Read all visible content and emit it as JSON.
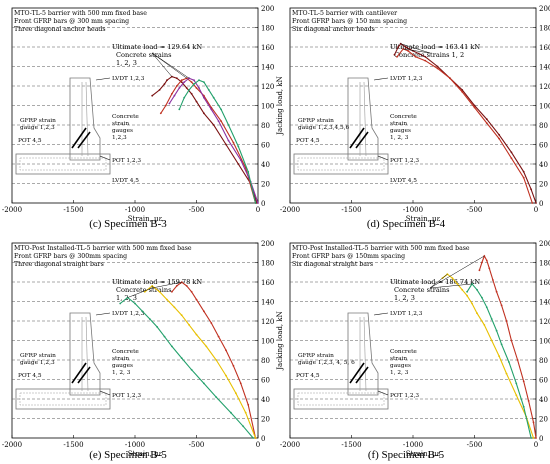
{
  "chart_data": [
    {
      "type": "line",
      "panel": "c",
      "caption": "(c) Specimen B-3",
      "notes": [
        "MTO-TL-5 barrier with 500 mm fixed base",
        "Front GFRP bars @ 300 mm spacing",
        "Three diagonal anchor heads"
      ],
      "annotation": "Ultimate load = 129.64 kN",
      "annotation2": [
        "Concrete strains",
        "1, 2, 3"
      ],
      "xlabel": "Strain, με",
      "ylabel": "Jacking load, kN",
      "xlim": [
        -2000,
        0
      ],
      "ylim": [
        0,
        200
      ],
      "xticks": [
        "-2000",
        "-1500",
        "-1000",
        "-500",
        "0"
      ],
      "yticks": [
        "0",
        "20",
        "40",
        "60",
        "80",
        "100",
        "120",
        "140",
        "160",
        "180",
        "200"
      ],
      "inset_labels": [
        "LVDT 1,2,3",
        "GFRP strain",
        "gauge 1,2,3",
        "Concrete",
        "strain",
        "gauges",
        "1,2,3",
        "POT 4,5",
        "POT 1,2,3",
        "LVDT 4,5"
      ],
      "series": [
        {
          "color": "#7a1010",
          "x": [
            -860,
            -800,
            -760,
            -740,
            -700,
            -660,
            -620,
            -580,
            -540,
            -500,
            -440,
            -360,
            -260,
            -160,
            -60,
            -10
          ],
          "y": [
            110,
            116,
            122,
            126,
            129.6,
            128,
            124,
            118,
            112,
            104,
            92,
            80,
            60,
            40,
            20,
            0
          ]
        },
        {
          "color": "#c03020",
          "x": [
            -790,
            -750,
            -700,
            -660,
            -620,
            -580,
            -540,
            -500,
            -440,
            -380,
            -300,
            -200,
            -100,
            -20
          ],
          "y": [
            92,
            100,
            112,
            120,
            126,
            128,
            124,
            118,
            110,
            98,
            84,
            62,
            36,
            0
          ]
        },
        {
          "color": "#8b2fa0",
          "x": [
            -720,
            -680,
            -640,
            -600,
            -560,
            -520,
            -480,
            -440,
            -380,
            -320,
            -240,
            -140,
            -60,
            0
          ],
          "y": [
            102,
            110,
            118,
            124,
            128,
            126,
            118,
            108,
            96,
            84,
            64,
            44,
            22,
            0
          ]
        },
        {
          "color": "#22a06b",
          "x": [
            -640,
            -600,
            -560,
            -520,
            -480,
            -440,
            -400,
            -360,
            -300,
            -240,
            -160,
            -80,
            -20
          ],
          "y": [
            96,
            108,
            116,
            122,
            126,
            124,
            116,
            108,
            96,
            80,
            58,
            32,
            0
          ]
        }
      ]
    },
    {
      "type": "line",
      "panel": "d",
      "caption": "(d) Specimen B-4",
      "notes": [
        "MTO-TL-5 barrier with cantilever",
        "Front GFRP bars @ 150 mm spacing",
        "Six diagonal anchor heads"
      ],
      "annotation": "Ultimate load = 163.41 kN",
      "annotation2": [
        "Concrete strains 1, 2"
      ],
      "xlabel": "Strain, με",
      "ylabel": "Jacking load, kN",
      "xlim": [
        -2000,
        0
      ],
      "ylim": [
        0,
        200
      ],
      "xticks": [
        "-2000",
        "-1500",
        "-1000",
        "-500",
        "0"
      ],
      "yticks": [
        "0",
        "20",
        "40",
        "60",
        "80",
        "100",
        "120",
        "140",
        "160",
        "180",
        "200"
      ],
      "inset_labels": [
        "LVDT 1,2,3",
        "GFRP strain",
        "gauge 1,2,3,4,5,6",
        "Concrete",
        "strain",
        "gauges",
        "1, 2, 3",
        "POT 4,5",
        "POT 1,2,3",
        "LVDT 4,5"
      ],
      "series": [
        {
          "color": "#7a1010",
          "x": [
            -1150,
            -1120,
            -1100,
            -1060,
            -1000,
            -900,
            -800,
            -700,
            -600,
            -500,
            -400,
            -300,
            -200,
            -100,
            -40,
            0
          ],
          "y": [
            152,
            160,
            163.4,
            160,
            156,
            150,
            140,
            128,
            116,
            100,
            86,
            70,
            52,
            32,
            14,
            0
          ]
        },
        {
          "color": "#c03020",
          "x": [
            -1130,
            -1080,
            -1040,
            -980,
            -900,
            -800,
            -700,
            -600,
            -500,
            -400,
            -300,
            -200,
            -100,
            -30
          ],
          "y": [
            150,
            158,
            156,
            150,
            146,
            138,
            128,
            114,
            98,
            82,
            66,
            46,
            26,
            0
          ]
        }
      ]
    },
    {
      "type": "line",
      "panel": "e",
      "caption": "(e) Specimen B-5",
      "notes": [
        "MTO-Post Installed-TL-5 barrier with 500 mm fixed base",
        "Front GFRP bars @ 300mm spacing",
        "Three diagonal straight bars"
      ],
      "annotation": "Ultimate load = 159.78 kN",
      "annotation2": [
        "Concrete strains",
        "1, 2, 3"
      ],
      "xlabel": "Strain, με",
      "ylabel": "Jacking load, kN",
      "xlim": [
        -2000,
        0
      ],
      "ylim": [
        0,
        200
      ],
      "xticks": [
        "-2000",
        "-1500",
        "-1000",
        "-500",
        "0"
      ],
      "yticks": [
        "0",
        "20",
        "40",
        "60",
        "80",
        "100",
        "120",
        "140",
        "160",
        "180",
        "200"
      ],
      "inset_labels": [
        "LVDT 1,2,3",
        "GFRP strain",
        "gauge 1,2,3",
        "Concrete",
        "strain",
        "gauges",
        "1, 2, 3",
        "POT 4,5",
        "POT 1,2,3"
      ],
      "series": [
        {
          "color": "#c03020",
          "x": [
            -700,
            -660,
            -620,
            -580,
            -540,
            -500,
            -440,
            -380,
            -320,
            -260,
            -200,
            -140,
            -80,
            -20
          ],
          "y": [
            150,
            156,
            159.8,
            156,
            150,
            142,
            130,
            118,
            104,
            90,
            74,
            56,
            34,
            0
          ]
        },
        {
          "color": "#e8c000",
          "x": [
            -920,
            -860,
            -800,
            -740,
            -680,
            -620,
            -560,
            -500,
            -420,
            -340,
            -260,
            -180,
            -100,
            -20
          ],
          "y": [
            150,
            156,
            150,
            142,
            134,
            126,
            116,
            106,
            94,
            80,
            64,
            46,
            26,
            0
          ]
        },
        {
          "color": "#22a06b",
          "x": [
            -1120,
            -1060,
            -1000,
            -940,
            -880,
            -820,
            -760,
            -700,
            -620,
            -540,
            -440,
            -340,
            -220,
            -120,
            -40
          ],
          "y": [
            138,
            144,
            138,
            130,
            122,
            114,
            104,
            94,
            82,
            70,
            56,
            42,
            26,
            12,
            0
          ]
        }
      ]
    },
    {
      "type": "line",
      "panel": "f",
      "caption": "(f) Specimen B-5",
      "notes": [
        "MTO-Post Installed-TL-5 barrier with 500 mm fixed base",
        "Front GFRP bars @ 150mm spacing",
        "Six diagonal straight bars"
      ],
      "annotation": "Ultimate load = 186.74 kN",
      "annotation2": [
        "Concrete strains",
        "1, 2, 3"
      ],
      "xlabel": "Strain, με",
      "ylabel": "Jacking load, kN",
      "xlim": [
        -2000,
        0
      ],
      "ylim": [
        0,
        200
      ],
      "xticks": [
        "-2000",
        "-1500",
        "-1000",
        "-500",
        "0"
      ],
      "yticks": [
        "0",
        "20",
        "40",
        "60",
        "80",
        "100",
        "120",
        "140",
        "160",
        "180",
        "200"
      ],
      "inset_labels": [
        "LVDT 1,2,3",
        "GFRP strain",
        "gauge 1,2,3, 4, 5, 6",
        "Concrete",
        "strain",
        "gauges",
        "1, 2, 3",
        "POT 4,5",
        "POT 1,2,3"
      ],
      "series": [
        {
          "color": "#c03020",
          "x": [
            -460,
            -440,
            -420,
            -400,
            -380,
            -350,
            -320,
            -280,
            -240,
            -200,
            -150,
            -100,
            -60,
            -20,
            0
          ],
          "y": [
            172,
            180,
            186.7,
            182,
            174,
            162,
            150,
            136,
            120,
            100,
            80,
            58,
            38,
            16,
            0
          ]
        },
        {
          "color": "#e8c000",
          "x": [
            -760,
            -720,
            -680,
            -640,
            -600,
            -560,
            -520,
            -480,
            -420,
            -360,
            -300,
            -240,
            -160,
            -80,
            -20
          ],
          "y": [
            164,
            168,
            164,
            158,
            152,
            146,
            138,
            128,
            116,
            100,
            84,
            66,
            44,
            22,
            0
          ]
        },
        {
          "color": "#22a06b",
          "x": [
            -560,
            -520,
            -480,
            -440,
            -400,
            -360,
            -320,
            -280,
            -220,
            -160,
            -100,
            -40
          ],
          "y": [
            150,
            158,
            152,
            144,
            134,
            122,
            110,
            96,
            78,
            56,
            32,
            0
          ]
        }
      ]
    }
  ]
}
